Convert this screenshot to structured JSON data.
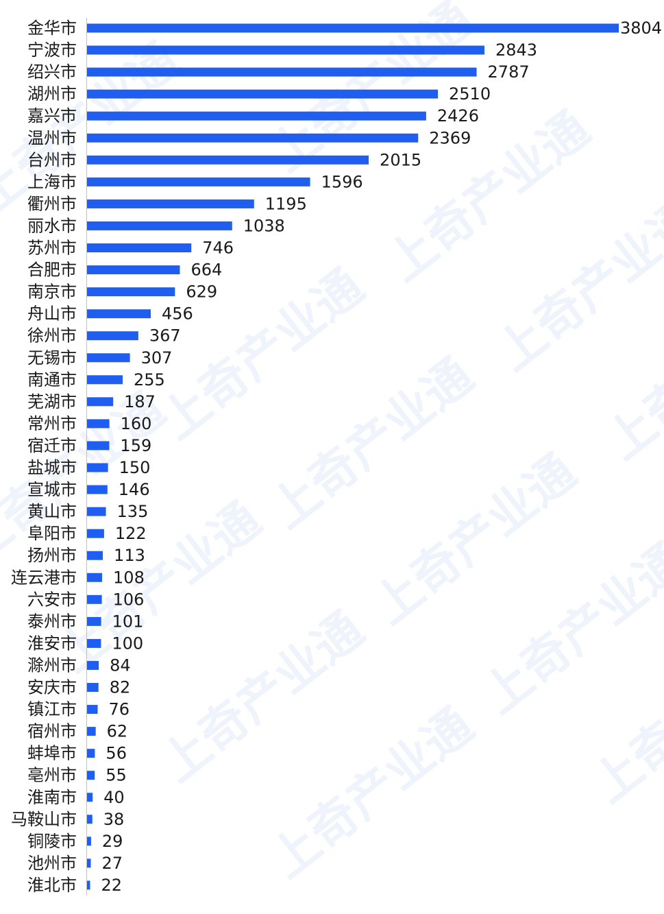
{
  "watermark_text": "上奇产业通",
  "colors": {
    "bar": "#1f5ef0",
    "axis": "#bfbfbf",
    "text": "#1a1a1a",
    "watermark": "#eef3fc"
  },
  "chart_data": {
    "type": "bar",
    "orientation": "horizontal",
    "title": "",
    "xlabel": "",
    "ylabel": "",
    "grid": false,
    "legend": "none",
    "xlim": [
      0,
      3804
    ],
    "categories": [
      "金华市",
      "宁波市",
      "绍兴市",
      "湖州市",
      "嘉兴市",
      "温州市",
      "台州市",
      "上海市",
      "衢州市",
      "丽水市",
      "苏州市",
      "合肥市",
      "南京市",
      "舟山市",
      "徐州市",
      "无锡市",
      "南通市",
      "芜湖市",
      "常州市",
      "宿迁市",
      "盐城市",
      "宣城市",
      "黄山市",
      "阜阳市",
      "扬州市",
      "连云港市",
      "六安市",
      "泰州市",
      "淮安市",
      "滁州市",
      "安庆市",
      "镇江市",
      "宿州市",
      "蚌埠市",
      "亳州市",
      "淮南市",
      "马鞍山市",
      "铜陵市",
      "池州市",
      "淮北市"
    ],
    "values": [
      3804,
      2843,
      2787,
      2510,
      2426,
      2369,
      2015,
      1596,
      1195,
      1038,
      746,
      664,
      629,
      456,
      367,
      307,
      255,
      187,
      160,
      159,
      150,
      146,
      135,
      122,
      113,
      108,
      106,
      101,
      100,
      84,
      82,
      76,
      62,
      56,
      55,
      40,
      38,
      29,
      27,
      22
    ]
  }
}
